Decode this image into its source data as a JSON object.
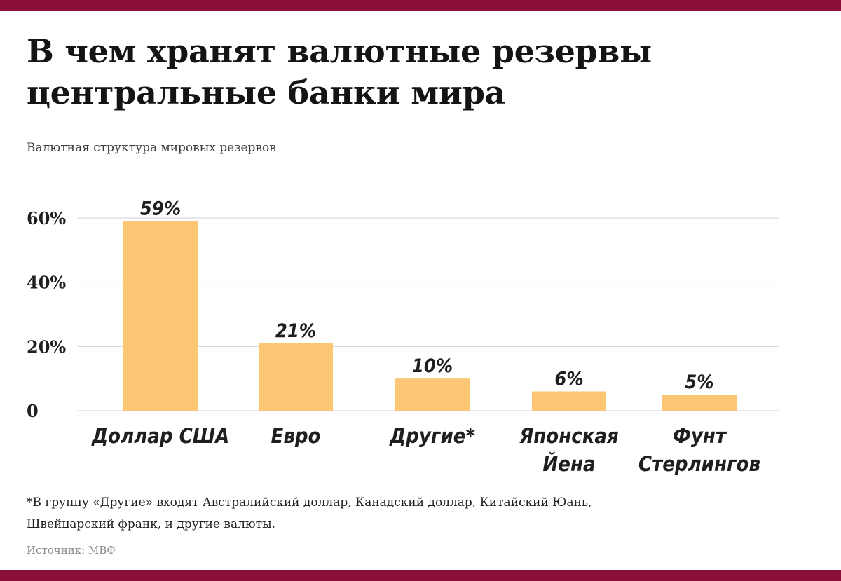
{
  "header": {
    "title_line1": "В чем хранят валютные резервы",
    "title_line2": "центральные банки мира",
    "subtitle": "Валютная структура мировых резервов"
  },
  "colors": {
    "frame": "#8a0f37",
    "bar": "#fdc674",
    "grid": "#d2d2d2",
    "text": "#1f1f1f"
  },
  "chart_data": {
    "type": "bar",
    "title": "В чем хранят валютные резервы центральные банки мира",
    "subtitle": "Валютная структура мировых резервов",
    "categories": [
      [
        "Доллар США"
      ],
      [
        "Евро"
      ],
      [
        "Другие*"
      ],
      [
        "Японская",
        "Йена"
      ],
      [
        "Фунт",
        "Стерлингов"
      ]
    ],
    "values": [
      59,
      21,
      10,
      6,
      5
    ],
    "value_labels": [
      "59%",
      "21%",
      "10%",
      "6%",
      "5%"
    ],
    "ylim": [
      0,
      60
    ],
    "yticks": [
      0,
      20,
      40,
      60
    ],
    "ytick_labels": [
      "0",
      "20%",
      "40%",
      "60%"
    ],
    "grid": true,
    "xlabel": "",
    "ylabel": ""
  },
  "footnote": {
    "line1": "*В группу «Другие» входят Австралийский доллар, Канадский доллар, Китайский Юань,",
    "line2": "Швейцарский франк, и другие валюты."
  },
  "source": "Источник: МВФ"
}
